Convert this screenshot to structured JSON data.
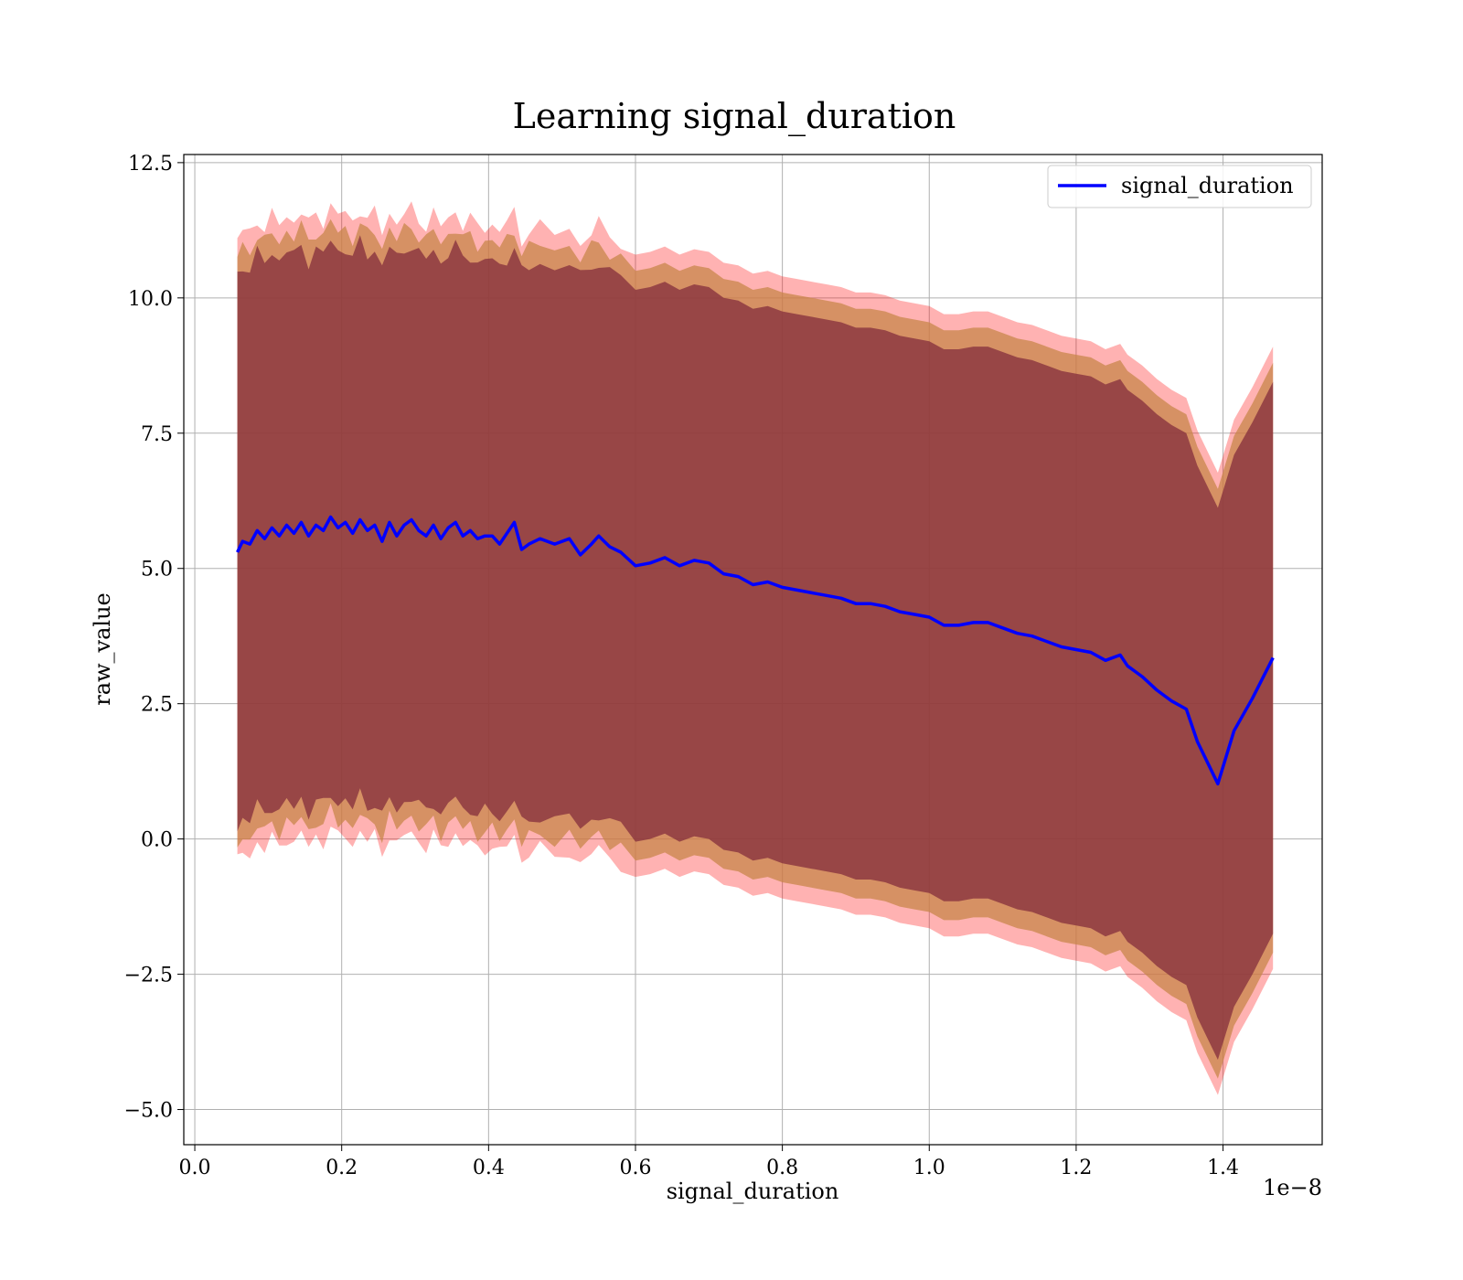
{
  "chart_data": {
    "type": "area",
    "title": "Learning signal_duration",
    "xlabel": "signal_duration",
    "ylabel": "raw_value",
    "x_offset_label": "1e−8",
    "xlim": [
      -0.015,
      1.535
    ],
    "ylim": [
      -5.65,
      12.65
    ],
    "x_ticks": [
      0.0,
      0.2,
      0.4,
      0.6,
      0.8,
      1.0,
      1.2,
      1.4
    ],
    "x_tick_labels": [
      "0.0",
      "0.2",
      "0.4",
      "0.6",
      "0.8",
      "1.0",
      "1.2",
      "1.4"
    ],
    "y_ticks": [
      -5.0,
      -2.5,
      0.0,
      2.5,
      5.0,
      7.5,
      10.0,
      12.5
    ],
    "y_tick_labels": [
      "−5.0",
      "−2.5",
      "0.0",
      "2.5",
      "5.0",
      "7.5",
      "10.0",
      "12.5"
    ],
    "grid": true,
    "legend": {
      "position": "top-right",
      "entries": [
        "signal_duration"
      ]
    },
    "colors": {
      "line": "#0000ff",
      "outer_band": "#ff0000",
      "inner_band": "#7f2a3a",
      "mid_band": "#c8864a"
    },
    "series": [
      {
        "name": "signal_duration",
        "x": [
          0.058,
          0.065,
          0.075,
          0.085,
          0.095,
          0.105,
          0.115,
          0.125,
          0.135,
          0.145,
          0.155,
          0.165,
          0.175,
          0.185,
          0.195,
          0.205,
          0.215,
          0.225,
          0.235,
          0.245,
          0.255,
          0.265,
          0.275,
          0.285,
          0.295,
          0.305,
          0.315,
          0.325,
          0.335,
          0.345,
          0.355,
          0.365,
          0.375,
          0.385,
          0.395,
          0.405,
          0.415,
          0.425,
          0.435,
          0.445,
          0.455,
          0.47,
          0.49,
          0.51,
          0.525,
          0.54,
          0.55,
          0.565,
          0.58,
          0.6,
          0.62,
          0.64,
          0.66,
          0.68,
          0.7,
          0.72,
          0.74,
          0.76,
          0.78,
          0.8,
          0.82,
          0.84,
          0.86,
          0.88,
          0.9,
          0.92,
          0.94,
          0.96,
          0.98,
          1.0,
          1.02,
          1.04,
          1.06,
          1.08,
          1.1,
          1.12,
          1.14,
          1.16,
          1.18,
          1.2,
          1.22,
          1.24,
          1.26,
          1.27,
          1.29,
          1.31,
          1.33,
          1.35,
          1.365,
          1.393,
          1.415,
          1.44,
          1.468
        ],
        "y": [
          5.3,
          5.5,
          5.45,
          5.7,
          5.55,
          5.75,
          5.6,
          5.8,
          5.65,
          5.85,
          5.6,
          5.8,
          5.7,
          5.95,
          5.75,
          5.85,
          5.65,
          5.9,
          5.7,
          5.8,
          5.5,
          5.85,
          5.6,
          5.8,
          5.9,
          5.7,
          5.6,
          5.8,
          5.55,
          5.75,
          5.85,
          5.6,
          5.7,
          5.55,
          5.6,
          5.6,
          5.45,
          5.65,
          5.85,
          5.35,
          5.45,
          5.55,
          5.45,
          5.55,
          5.25,
          5.45,
          5.6,
          5.4,
          5.3,
          5.05,
          5.1,
          5.2,
          5.05,
          5.15,
          5.1,
          4.9,
          4.85,
          4.7,
          4.75,
          4.65,
          4.6,
          4.55,
          4.5,
          4.45,
          4.35,
          4.35,
          4.3,
          4.2,
          4.15,
          4.1,
          3.95,
          3.95,
          4.0,
          4.0,
          3.9,
          3.8,
          3.75,
          3.65,
          3.55,
          3.5,
          3.45,
          3.3,
          3.4,
          3.2,
          3.0,
          2.75,
          2.55,
          2.4,
          1.8,
          1.02,
          2.0,
          2.6,
          3.35
        ]
      }
    ],
    "bands": [
      {
        "label": "outer",
        "upper_offset": 5.75,
        "lower_offset": -5.75
      },
      {
        "label": "mid",
        "upper_offset": 5.45,
        "lower_offset": -5.45
      },
      {
        "label": "inner",
        "upper_offset": 5.1,
        "lower_offset": -5.1
      }
    ]
  }
}
